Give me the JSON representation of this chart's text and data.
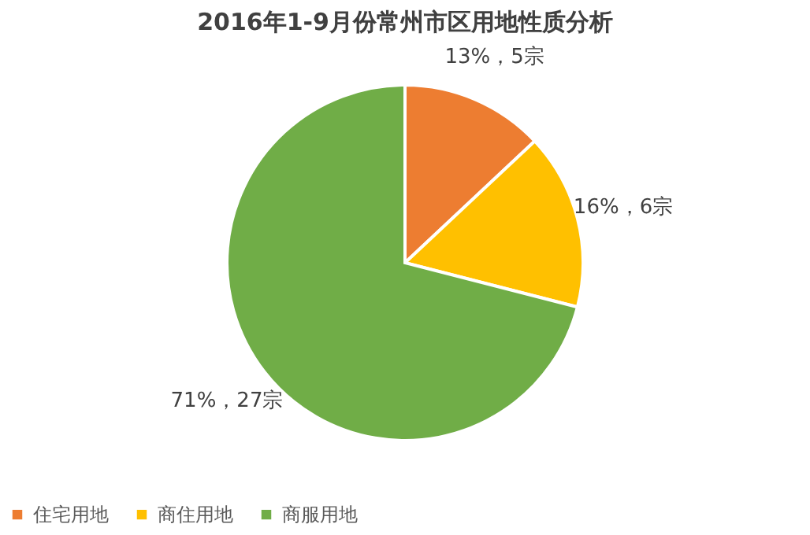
{
  "chart_data": {
    "type": "pie",
    "title": "2016年1-9月份常州市区用地性质分析",
    "categories": [
      "住宅用地",
      "商住用地",
      "商服用地"
    ],
    "values": [
      13,
      16,
      71
    ],
    "value_labels": [
      "13%，5宗",
      "16%，6宗",
      "71%，27宗"
    ],
    "colors": [
      "#ed7d31",
      "#ffc000",
      "#70ad47"
    ],
    "legend": "bottom"
  }
}
